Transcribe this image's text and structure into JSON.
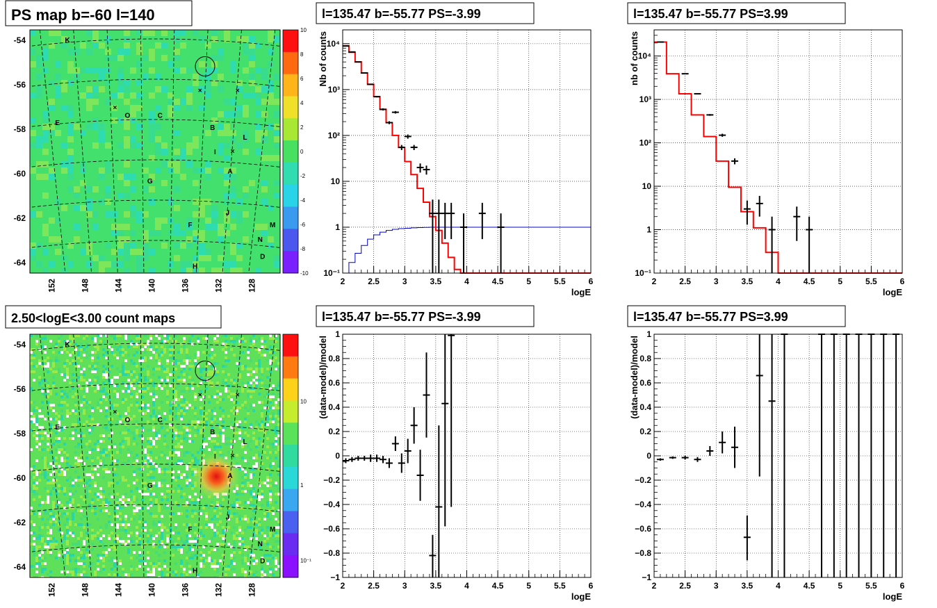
{
  "colors": {
    "data": "#000000",
    "model": "#ff0000",
    "efficiency": "#0000cc",
    "grid": "#000000"
  },
  "maps": [
    {
      "title": "PS map b=-60 l=140",
      "type": "significance",
      "y_ticks": [
        "-54",
        "-56",
        "-58",
        "-60",
        "-62",
        "-64"
      ],
      "x_ticks": [
        "152",
        "148",
        "144",
        "140",
        "136",
        "132",
        "128"
      ],
      "colorbar_ticks": [
        "10",
        "8",
        "6",
        "4",
        "2",
        "0",
        "-2",
        "-4",
        "-6",
        "-8",
        "-10"
      ],
      "labels": [
        "K",
        "E",
        "O",
        "C",
        "B",
        "L",
        "I",
        "A",
        "G",
        "F",
        "J",
        "M",
        "N",
        "D",
        "H"
      ]
    },
    {
      "title": "2.50<logE<3.00 count maps",
      "type": "counts",
      "y_ticks": [
        "-54",
        "-56",
        "-58",
        "-60",
        "-62",
        "-64"
      ],
      "x_ticks": [
        "152",
        "148",
        "144",
        "140",
        "136",
        "132",
        "128"
      ],
      "colorbar_ticks": [
        "10",
        "1",
        "10⁻¹"
      ],
      "labels": [
        "K",
        "E",
        "O",
        "C",
        "B",
        "L",
        "I",
        "A",
        "G",
        "F",
        "J",
        "M",
        "N",
        "D",
        "H"
      ]
    }
  ],
  "chart_data": [
    {
      "type": "line",
      "title": "l=135.47 b=-55.77 PS=-3.99",
      "xlabel": "logE",
      "ylabel": "Nb of counts",
      "log_y": true,
      "xlim": [
        2,
        6
      ],
      "ylim": [
        0.1,
        20000
      ],
      "grid": true,
      "x_ticks": [
        "2",
        "2.5",
        "3",
        "3.5",
        "4",
        "4.5",
        "5",
        "5.5",
        "6"
      ],
      "y_ticks": [
        {
          "v": 0.1,
          "label": "10⁻¹"
        },
        {
          "v": 1,
          "label": "1"
        },
        {
          "v": 10,
          "label": "10"
        },
        {
          "v": 100,
          "label": "10²"
        },
        {
          "v": 1000,
          "label": "10³"
        },
        {
          "v": 10000,
          "label": "10⁴"
        }
      ],
      "bin_edges": [
        2.0,
        2.1,
        2.2,
        2.3,
        2.4,
        2.5,
        2.6,
        2.7,
        2.8,
        2.9,
        3.0,
        3.1,
        3.2,
        3.3,
        3.4,
        3.5,
        3.6,
        3.7,
        3.8,
        3.9,
        4.0,
        4.1,
        4.2,
        4.3,
        4.4,
        4.5,
        4.6,
        4.7,
        4.8,
        4.9,
        5.0,
        5.1,
        5.2,
        5.3,
        5.4,
        5.5,
        5.6,
        5.7,
        5.8,
        5.9,
        6.0
      ],
      "model_values": [
        9000,
        6500,
        4000,
        2300,
        1300,
        700,
        370,
        190,
        100,
        55,
        27,
        14,
        7,
        3.5,
        1.7,
        0.85,
        0.45,
        0.22,
        0.12,
        0.1,
        0.1,
        0.1,
        0.1,
        0.1,
        0.1,
        0.1,
        0.1,
        0.1,
        0.1,
        0.1,
        0.1,
        0.1,
        0.1,
        0.1,
        0.1,
        0.1,
        0.1,
        0.1,
        0.1,
        0.1
      ],
      "efficiency_values": [
        0.1,
        0.17,
        0.27,
        0.4,
        0.55,
        0.68,
        0.78,
        0.85,
        0.9,
        0.93,
        0.95,
        0.97,
        0.98,
        0.99,
        1,
        1,
        1,
        1,
        1,
        1,
        1,
        1,
        1,
        1,
        1,
        1,
        1,
        1,
        1,
        1,
        1,
        1,
        1,
        1,
        1,
        1,
        1,
        1,
        1,
        1
      ],
      "points": [
        {
          "x": 2.05,
          "y": 8900,
          "lo": 8800,
          "hi": 9000
        },
        {
          "x": 2.15,
          "y": 6600,
          "lo": 6500,
          "hi": 6700
        },
        {
          "x": 2.25,
          "y": 4000,
          "lo": 3950,
          "hi": 4050
        },
        {
          "x": 2.35,
          "y": 2300,
          "lo": 2260,
          "hi": 2340
        },
        {
          "x": 2.45,
          "y": 1300,
          "lo": 1270,
          "hi": 1330
        },
        {
          "x": 2.55,
          "y": 700,
          "lo": 675,
          "hi": 725
        },
        {
          "x": 2.65,
          "y": 370,
          "lo": 350,
          "hi": 390
        },
        {
          "x": 2.75,
          "y": 190,
          "lo": 176,
          "hi": 204
        },
        {
          "x": 2.85,
          "y": 320,
          "lo": 300,
          "hi": 340
        },
        {
          "x": 2.95,
          "y": 55,
          "lo": 48,
          "hi": 62
        },
        {
          "x": 3.05,
          "y": 95,
          "lo": 85,
          "hi": 105
        },
        {
          "x": 3.15,
          "y": 55,
          "lo": 48,
          "hi": 62
        },
        {
          "x": 3.25,
          "y": 20,
          "lo": 15.5,
          "hi": 24.5
        },
        {
          "x": 3.35,
          "y": 18,
          "lo": 14,
          "hi": 22
        },
        {
          "x": 3.45,
          "y": 2,
          "lo": 0.1,
          "hi": 4
        },
        {
          "x": 3.55,
          "y": 2,
          "lo": 0.1,
          "hi": 4
        },
        {
          "x": 3.65,
          "y": 2,
          "lo": 0.55,
          "hi": 3.4
        },
        {
          "x": 3.75,
          "y": 2,
          "lo": 0.55,
          "hi": 3.4
        },
        {
          "x": 3.95,
          "y": 1,
          "lo": 0.1,
          "hi": 2
        },
        {
          "x": 4.25,
          "y": 2,
          "lo": 0.55,
          "hi": 3.4
        },
        {
          "x": 4.55,
          "y": 1,
          "lo": 0.1,
          "hi": 2
        }
      ]
    },
    {
      "type": "line",
      "title": "l=135.47 b=-55.77 PS=3.99",
      "xlabel": "logE",
      "ylabel": "nb of counts",
      "log_y": true,
      "xlim": [
        2,
        6
      ],
      "ylim": [
        0.1,
        40000
      ],
      "grid": true,
      "x_ticks": [
        "2",
        "2.5",
        "3",
        "3.5",
        "4",
        "4.5",
        "5",
        "5.5",
        "6"
      ],
      "y_ticks": [
        {
          "v": 0.1,
          "label": "10⁻¹"
        },
        {
          "v": 1,
          "label": "1"
        },
        {
          "v": 10,
          "label": "10"
        },
        {
          "v": 100,
          "label": "10²"
        },
        {
          "v": 1000,
          "label": "10³"
        },
        {
          "v": 10000,
          "label": "10⁴"
        }
      ],
      "bin_edges": [
        2.0,
        2.2,
        2.4,
        2.6,
        2.8,
        3.0,
        3.2,
        3.4,
        3.6,
        3.8,
        4.0,
        4.2,
        4.4,
        4.6,
        4.8,
        5.0,
        5.2,
        5.4,
        5.6,
        5.8,
        6.0
      ],
      "model_values": [
        21000,
        3900,
        1350,
        440,
        140,
        38,
        9.5,
        2.6,
        1.1,
        0.3,
        0.1,
        0.1,
        0.1,
        0.1,
        0.1,
        0.1,
        0.1,
        0.1,
        0.1,
        0.1
      ],
      "points": [
        {
          "x": 2.1,
          "y": 21000,
          "lo": 20800,
          "hi": 21200
        },
        {
          "x": 2.5,
          "y": 3900,
          "lo": 3830,
          "hi": 3970
        },
        {
          "x": 2.7,
          "y": 1350,
          "lo": 1310,
          "hi": 1390
        },
        {
          "x": 2.9,
          "y": 440,
          "lo": 420,
          "hi": 460
        },
        {
          "x": 3.1,
          "y": 150,
          "lo": 138,
          "hi": 162
        },
        {
          "x": 3.3,
          "y": 38,
          "lo": 32,
          "hi": 44
        },
        {
          "x": 3.5,
          "y": 3,
          "lo": 1.3,
          "hi": 4.7
        },
        {
          "x": 3.7,
          "y": 4,
          "lo": 2,
          "hi": 6
        },
        {
          "x": 3.9,
          "y": 1,
          "lo": 0.1,
          "hi": 2
        },
        {
          "x": 4.3,
          "y": 2,
          "lo": 0.55,
          "hi": 3.4
        },
        {
          "x": 4.5,
          "y": 1,
          "lo": 0.1,
          "hi": 2
        }
      ]
    },
    {
      "type": "scatter",
      "title": "l=135.47 b=-55.77 PS=-3.99",
      "xlabel": "logE",
      "ylabel": "(data-model)/model",
      "log_y": false,
      "xlim": [
        2,
        6
      ],
      "ylim": [
        -1,
        1
      ],
      "grid": true,
      "x_ticks": [
        "2",
        "2.5",
        "3",
        "3.5",
        "4",
        "4.5",
        "5",
        "5.5",
        "6"
      ],
      "y_ticks": [
        {
          "v": -1,
          "label": "−1"
        },
        {
          "v": -0.8,
          "label": "−0.8"
        },
        {
          "v": -0.6,
          "label": "−0.6"
        },
        {
          "v": -0.4,
          "label": "−0.4"
        },
        {
          "v": -0.2,
          "label": "−0.2"
        },
        {
          "v": 0,
          "label": "0"
        },
        {
          "v": 0.2,
          "label": "0.2"
        },
        {
          "v": 0.4,
          "label": "0.4"
        },
        {
          "v": 0.6,
          "label": "0.6"
        },
        {
          "v": 0.8,
          "label": "0.8"
        },
        {
          "v": 1,
          "label": "1"
        }
      ],
      "points": [
        {
          "x": 2.05,
          "y": -0.04,
          "lo": -0.06,
          "hi": -0.02
        },
        {
          "x": 2.15,
          "y": -0.03,
          "lo": -0.05,
          "hi": -0.01
        },
        {
          "x": 2.25,
          "y": -0.02,
          "lo": -0.04,
          "hi": 0.0
        },
        {
          "x": 2.35,
          "y": -0.02,
          "lo": -0.04,
          "hi": 0.0
        },
        {
          "x": 2.45,
          "y": -0.02,
          "lo": -0.05,
          "hi": 0.01
        },
        {
          "x": 2.55,
          "y": -0.02,
          "lo": -0.05,
          "hi": 0.01
        },
        {
          "x": 2.65,
          "y": -0.03,
          "lo": -0.06,
          "hi": 0.0
        },
        {
          "x": 2.75,
          "y": -0.06,
          "lo": -0.1,
          "hi": -0.02
        },
        {
          "x": 2.85,
          "y": 0.1,
          "lo": 0.04,
          "hi": 0.16
        },
        {
          "x": 2.95,
          "y": -0.06,
          "lo": -0.14,
          "hi": 0.02
        },
        {
          "x": 3.05,
          "y": 0.04,
          "lo": -0.06,
          "hi": 0.14
        },
        {
          "x": 3.15,
          "y": 0.25,
          "lo": 0.1,
          "hi": 0.4
        },
        {
          "x": 3.25,
          "y": -0.16,
          "lo": -0.37,
          "hi": 0.05
        },
        {
          "x": 3.35,
          "y": 0.5,
          "lo": 0.15,
          "hi": 0.85
        },
        {
          "x": 3.45,
          "y": -0.82,
          "lo": -1,
          "hi": -0.65
        },
        {
          "x": 3.55,
          "y": -0.42,
          "lo": -1,
          "hi": 0.25
        },
        {
          "x": 3.65,
          "y": 0.43,
          "lo": -0.58,
          "hi": 1
        },
        {
          "x": 3.75,
          "y": 0.99,
          "lo": -0.42,
          "hi": 1
        }
      ]
    },
    {
      "type": "scatter",
      "title": "l=135.47 b=-55.77 PS=3.99",
      "xlabel": "logE",
      "ylabel": "(data-model)/model",
      "log_y": false,
      "xlim": [
        2,
        6
      ],
      "ylim": [
        -1,
        1
      ],
      "grid": true,
      "x_ticks": [
        "2",
        "2.5",
        "3",
        "3.5",
        "4",
        "4.5",
        "5",
        "5.5",
        "6"
      ],
      "y_ticks": [
        {
          "v": -1,
          "label": "−1"
        },
        {
          "v": -0.8,
          "label": "−0.8"
        },
        {
          "v": -0.6,
          "label": "−0.6"
        },
        {
          "v": -0.4,
          "label": "−0.4"
        },
        {
          "v": -0.2,
          "label": "−0.2"
        },
        {
          "v": 0,
          "label": "0"
        },
        {
          "v": 0.2,
          "label": "0.2"
        },
        {
          "v": 0.4,
          "label": "0.4"
        },
        {
          "v": 0.6,
          "label": "0.6"
        },
        {
          "v": 0.8,
          "label": "0.8"
        },
        {
          "v": 1,
          "label": "1"
        }
      ],
      "points": [
        {
          "x": 2.1,
          "y": -0.03,
          "lo": -0.04,
          "hi": -0.02
        },
        {
          "x": 2.3,
          "y": -0.015,
          "lo": -0.025,
          "hi": -0.005
        },
        {
          "x": 2.5,
          "y": -0.015,
          "lo": -0.03,
          "hi": 0.0
        },
        {
          "x": 2.7,
          "y": -0.03,
          "lo": -0.05,
          "hi": -0.01
        },
        {
          "x": 2.9,
          "y": 0.04,
          "lo": 0.0,
          "hi": 0.08
        },
        {
          "x": 3.1,
          "y": 0.11,
          "lo": 0.02,
          "hi": 0.2
        },
        {
          "x": 3.3,
          "y": 0.07,
          "lo": -0.1,
          "hi": 0.24
        },
        {
          "x": 3.5,
          "y": -0.67,
          "lo": -0.86,
          "hi": -0.49
        },
        {
          "x": 3.7,
          "y": 0.66,
          "lo": -0.17,
          "hi": 1
        },
        {
          "x": 3.9,
          "y": 0.45,
          "lo": -1,
          "hi": 1
        },
        {
          "x": 4.1,
          "y": 1,
          "lo": -1,
          "hi": 1
        },
        {
          "x": 4.7,
          "y": 1,
          "lo": -1,
          "hi": 1
        },
        {
          "x": 4.9,
          "y": 1,
          "lo": -1,
          "hi": 1
        },
        {
          "x": 5.1,
          "y": 1,
          "lo": -1,
          "hi": 1
        },
        {
          "x": 5.3,
          "y": 1,
          "lo": -1,
          "hi": 1
        },
        {
          "x": 5.5,
          "y": 1,
          "lo": -1,
          "hi": 1
        },
        {
          "x": 5.7,
          "y": 1,
          "lo": -1,
          "hi": 1
        },
        {
          "x": 5.9,
          "y": 1,
          "lo": -1,
          "hi": 1
        }
      ]
    }
  ]
}
